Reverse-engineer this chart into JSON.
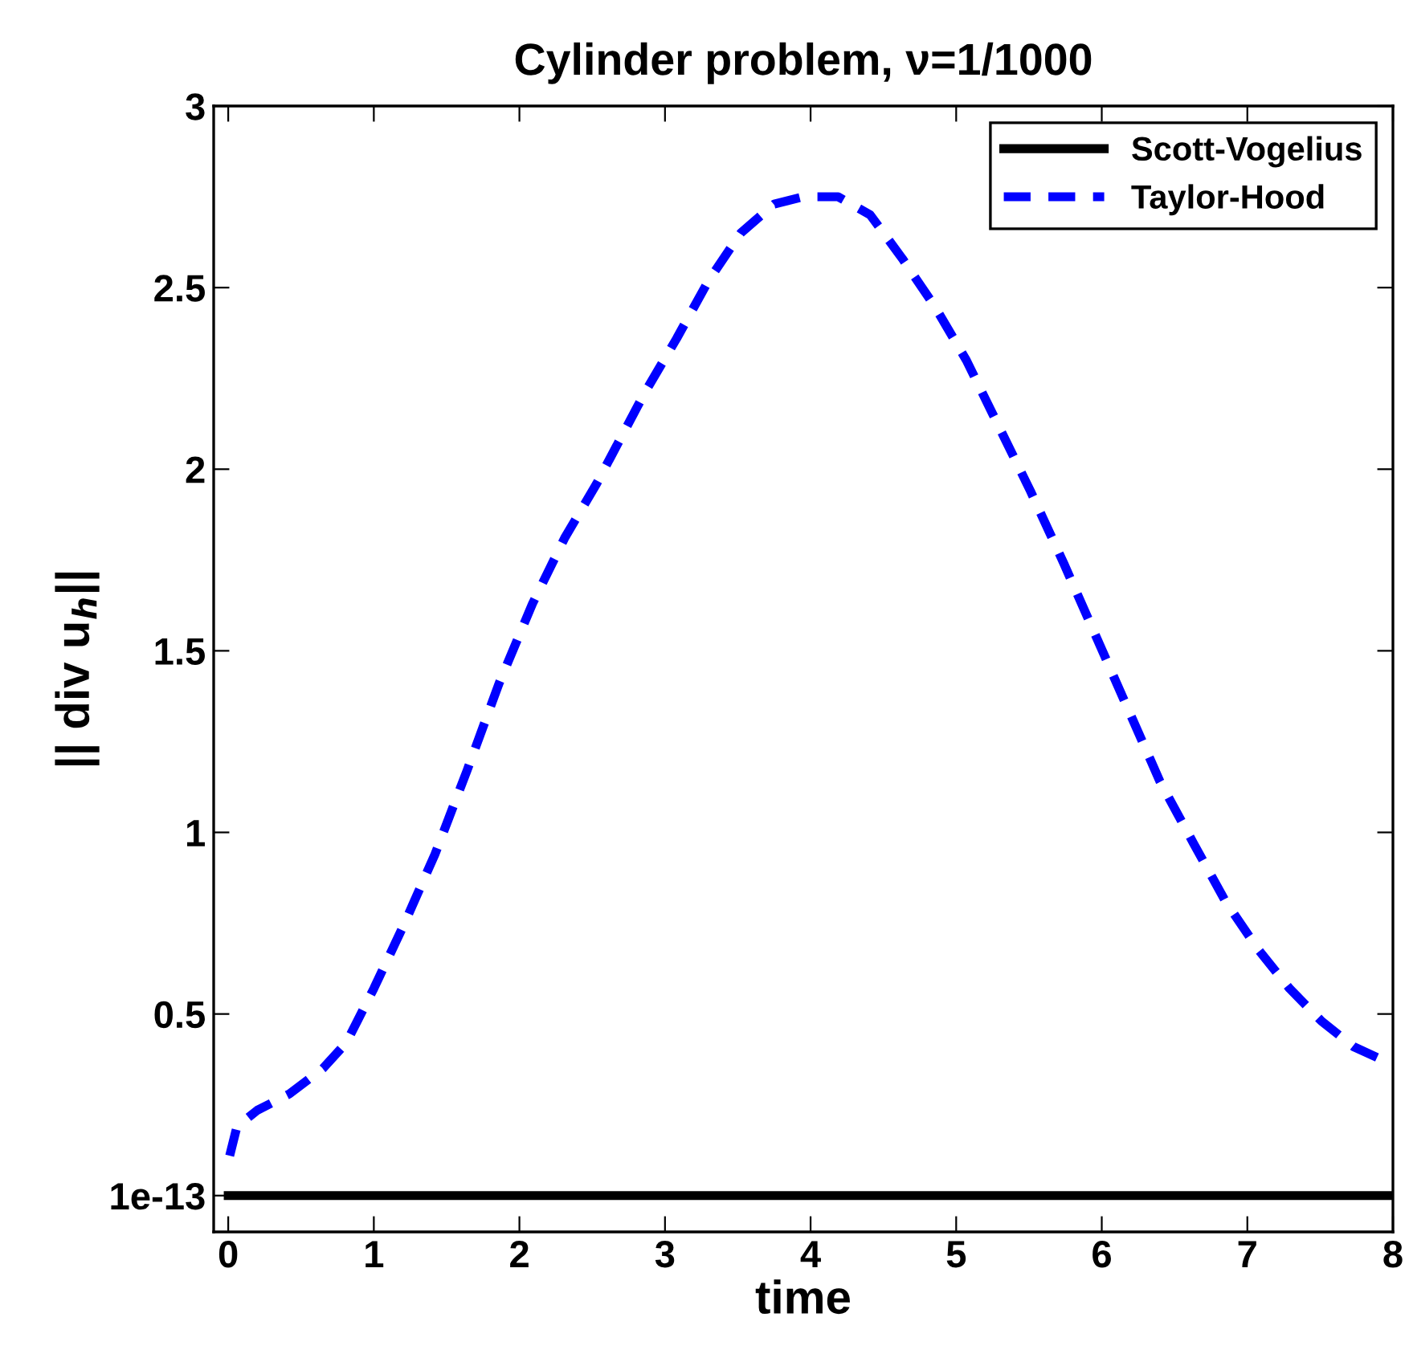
{
  "chart_data": {
    "type": "line",
    "title": "Cylinder problem, ν=1/1000",
    "xlabel": "time",
    "ylabel": "|| div u$_{h}$||",
    "xlim": [
      -0.1,
      8
    ],
    "xticks": [
      0,
      1,
      2,
      3,
      4,
      5,
      6,
      7,
      8
    ],
    "ylim": [
      -0.1,
      3
    ],
    "yticks": [
      {
        "value": 1e-13,
        "label": "1e-13"
      },
      0.5,
      1,
      1.5,
      2,
      2.5,
      3
    ],
    "grid": false,
    "legend": "top right",
    "series": [
      {
        "name": "Scott-Vogelius",
        "color": "#000000",
        "line_style": "solid",
        "x": [
          0,
          8
        ],
        "values": [
          1e-13,
          1e-13
        ]
      },
      {
        "name": "Taylor-Hood",
        "color": "#0000ff",
        "line_style": "dashed",
        "x": [
          0.01,
          0.06,
          0.2,
          0.42,
          0.65,
          0.81,
          1.0,
          1.2,
          1.42,
          1.64,
          1.86,
          2.09,
          2.31,
          2.53,
          2.86,
          3.08,
          3.3,
          3.52,
          3.75,
          3.95,
          4.19,
          4.41,
          4.63,
          4.85,
          5.07,
          5.29,
          5.51,
          5.74,
          5.96,
          6.18,
          6.4,
          6.63,
          6.85,
          7.07,
          7.29,
          7.51,
          7.73,
          8.0
        ],
        "values": [
          0.11,
          0.19,
          0.235,
          0.28,
          0.35,
          0.42,
          0.57,
          0.74,
          0.94,
          1.17,
          1.41,
          1.63,
          1.81,
          1.96,
          2.21,
          2.36,
          2.52,
          2.65,
          2.73,
          2.75,
          2.75,
          2.7,
          2.58,
          2.45,
          2.3,
          2.12,
          1.94,
          1.74,
          1.54,
          1.34,
          1.14,
          0.97,
          0.81,
          0.68,
          0.57,
          0.48,
          0.41,
          0.36
        ]
      }
    ]
  }
}
